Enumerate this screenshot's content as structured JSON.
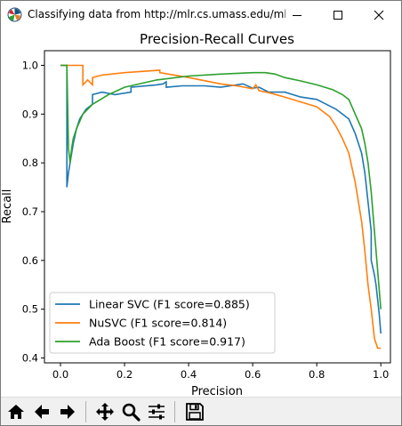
{
  "window": {
    "title": "Classifying data from http://mlr.cs.umass.edu/ml/...",
    "icon": "matplotlib-icon",
    "controls": [
      "minimize-icon",
      "maximize-icon",
      "close-icon"
    ]
  },
  "toolbar": {
    "tools": [
      "home-icon",
      "back-icon",
      "forward-icon",
      "pan-icon",
      "zoom-icon",
      "configure-subplots-icon",
      "save-icon"
    ]
  },
  "chart_data": {
    "type": "line",
    "title": "Precision-Recall Curves",
    "xlabel": "Precision",
    "ylabel": "Recall",
    "xlim": [
      -0.05,
      1.03
    ],
    "ylim": [
      0.39,
      1.03
    ],
    "xticks": [
      "0.0",
      "0.2",
      "0.4",
      "0.6",
      "0.8",
      "1.0"
    ],
    "yticks": [
      "0.4",
      "0.5",
      "0.6",
      "0.7",
      "0.8",
      "0.9",
      "1.0"
    ],
    "grid": false,
    "legend_position": "lower-left",
    "series": [
      {
        "name": "Linear SVC (F1 score=0.885)",
        "color": "#1f77b4",
        "x": [
          0.0,
          0.01,
          0.02,
          0.02,
          0.025,
          0.03,
          0.04,
          0.05,
          0.06,
          0.08,
          0.1,
          0.1,
          0.13,
          0.17,
          0.22,
          0.22,
          0.3,
          0.32,
          0.33,
          0.33,
          0.38,
          0.45,
          0.5,
          0.55,
          0.57,
          0.6,
          0.62,
          0.65,
          0.7,
          0.75,
          0.8,
          0.83,
          0.86,
          0.88,
          0.9,
          0.92,
          0.93,
          0.94,
          0.95,
          0.96,
          0.97,
          0.97,
          0.98,
          0.985,
          0.99,
          0.995,
          1.0
        ],
        "y": [
          1.0,
          1.0,
          1.0,
          0.75,
          0.78,
          0.8,
          0.84,
          0.87,
          0.89,
          0.91,
          0.92,
          0.94,
          0.945,
          0.94,
          0.945,
          0.955,
          0.96,
          0.962,
          0.966,
          0.955,
          0.958,
          0.958,
          0.955,
          0.96,
          0.962,
          0.953,
          0.955,
          0.945,
          0.945,
          0.935,
          0.93,
          0.92,
          0.91,
          0.9,
          0.89,
          0.86,
          0.84,
          0.82,
          0.78,
          0.72,
          0.66,
          0.6,
          0.57,
          0.55,
          0.52,
          0.49,
          0.45
        ]
      },
      {
        "name": "NuSVC (F1 score=0.814)",
        "color": "#ff7f0e",
        "x": [
          0.0,
          0.07,
          0.07,
          0.085,
          0.1,
          0.1,
          0.13,
          0.2,
          0.31,
          0.31,
          0.4,
          0.5,
          0.55,
          0.6,
          0.61,
          0.62,
          0.65,
          0.7,
          0.75,
          0.8,
          0.82,
          0.84,
          0.86,
          0.88,
          0.9,
          0.92,
          0.94,
          0.95,
          0.96,
          0.97,
          0.975,
          0.98,
          0.99,
          1.0
        ],
        "y": [
          1.0,
          1.0,
          0.96,
          0.97,
          0.96,
          0.975,
          0.98,
          0.985,
          0.99,
          0.985,
          0.975,
          0.962,
          0.958,
          0.952,
          0.96,
          0.948,
          0.944,
          0.935,
          0.925,
          0.915,
          0.905,
          0.895,
          0.875,
          0.85,
          0.82,
          0.76,
          0.68,
          0.62,
          0.55,
          0.5,
          0.47,
          0.44,
          0.42,
          0.42
        ]
      },
      {
        "name": "Ada Boost (F1 score=0.917)",
        "color": "#2ca02c",
        "x": [
          0.0,
          0.02,
          0.025,
          0.03,
          0.035,
          0.04,
          0.05,
          0.07,
          0.1,
          0.15,
          0.2,
          0.3,
          0.4,
          0.5,
          0.6,
          0.64,
          0.67,
          0.7,
          0.75,
          0.8,
          0.85,
          0.88,
          0.9,
          0.92,
          0.94,
          0.95,
          0.96,
          0.97,
          0.98,
          0.99,
          1.0
        ],
        "y": [
          1.0,
          1.0,
          0.83,
          0.8,
          0.83,
          0.85,
          0.87,
          0.9,
          0.92,
          0.94,
          0.955,
          0.97,
          0.978,
          0.982,
          0.985,
          0.985,
          0.982,
          0.975,
          0.968,
          0.96,
          0.95,
          0.94,
          0.93,
          0.9,
          0.87,
          0.84,
          0.8,
          0.74,
          0.66,
          0.58,
          0.5
        ]
      }
    ]
  }
}
